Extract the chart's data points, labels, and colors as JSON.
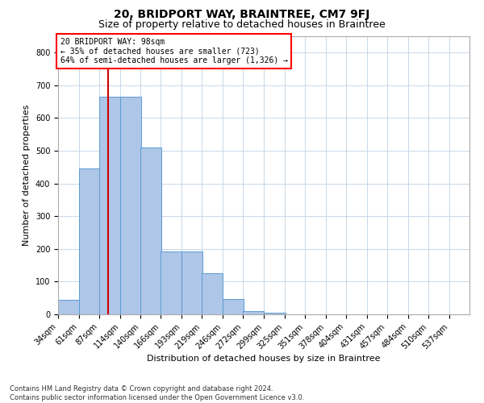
{
  "title": "20, BRIDPORT WAY, BRAINTREE, CM7 9FJ",
  "subtitle": "Size of property relative to detached houses in Braintree",
  "xlabel": "Distribution of detached houses by size in Braintree",
  "ylabel": "Number of detached properties",
  "bar_color": "#aec6e8",
  "bar_edge_color": "#5b9bd5",
  "grid_color": "#c8d8e8",
  "annotation_text": "20 BRIDPORT WAY: 98sqm\n← 35% of detached houses are smaller (723)\n64% of semi-detached houses are larger (1,326) →",
  "property_size": 98,
  "vline_color": "#cc0000",
  "bins": [
    34,
    61,
    87,
    114,
    140,
    166,
    193,
    219,
    246,
    272,
    299,
    325,
    351,
    378,
    404,
    431,
    457,
    484,
    510,
    537,
    563
  ],
  "counts": [
    45,
    445,
    665,
    665,
    510,
    193,
    193,
    125,
    47,
    10,
    5,
    0,
    0,
    0,
    0,
    0,
    0,
    0,
    0,
    0
  ],
  "ylim": [
    0,
    850
  ],
  "yticks": [
    0,
    100,
    200,
    300,
    400,
    500,
    600,
    700,
    800
  ],
  "footer": "Contains HM Land Registry data © Crown copyright and database right 2024.\nContains public sector information licensed under the Open Government Licence v3.0.",
  "bg_color": "#ffffff",
  "title_fontsize": 10,
  "subtitle_fontsize": 9,
  "tick_fontsize": 7,
  "ylabel_fontsize": 8,
  "xlabel_fontsize": 8,
  "footer_fontsize": 6,
  "annotation_fontsize": 7
}
